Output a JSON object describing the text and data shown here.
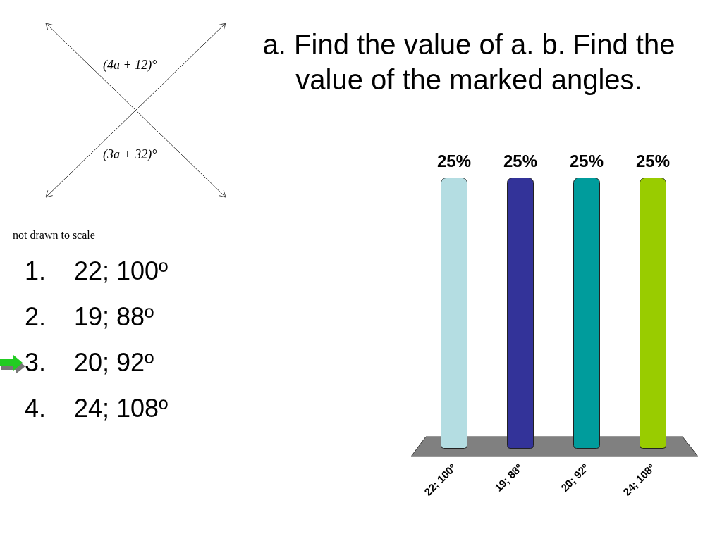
{
  "chart_data": {
    "type": "bar",
    "title": "a. Find the value of a. b. Find the value of the marked angles.",
    "categories": [
      "22; 100º",
      "19; 88º",
      "20; 92º",
      "24; 108º"
    ],
    "values": [
      25,
      25,
      25,
      25
    ],
    "colors": [
      "#b4dde2",
      "#333399",
      "#009c9c",
      "#99cc00"
    ],
    "value_labels": [
      "25%",
      "25%",
      "25%",
      "25%"
    ],
    "annotations": [
      "(4a + 12)°",
      "(3a + 32)°",
      "not drawn to scale",
      "1. 22; 100º",
      "2. 19; 88º",
      "3. 20; 92º",
      "4. 24; 108º"
    ]
  }
}
